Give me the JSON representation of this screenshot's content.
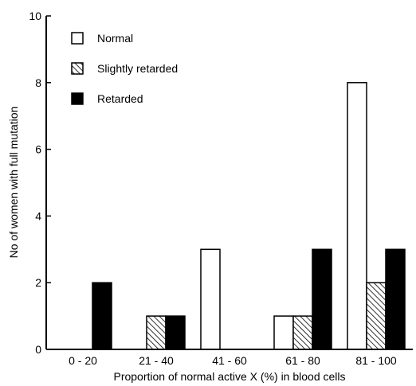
{
  "chart_data": {
    "type": "bar",
    "title": "",
    "xlabel": "Proportion of normal active X (%) in blood cells",
    "ylabel": "No of women with full mutation",
    "ylim": [
      0,
      10
    ],
    "yticks": [
      "0",
      "2",
      "4",
      "6",
      "8",
      "10"
    ],
    "categories": [
      "0 - 20",
      "21 - 40",
      "41 - 60",
      "61 - 80",
      "81 - 100"
    ],
    "legend_placement": "top-left",
    "grid": false,
    "series": [
      {
        "name": "Normal",
        "values": [
          0,
          0,
          3,
          1,
          8
        ],
        "fill": "#ffffff",
        "pattern": "none"
      },
      {
        "name": "Slightly retarded",
        "values": [
          0,
          1,
          0,
          1,
          2
        ],
        "fill": "#ffffff",
        "pattern": "hatch"
      },
      {
        "name": "Retarded",
        "values": [
          2,
          1,
          0,
          3,
          3
        ],
        "fill": "#000000",
        "pattern": "none"
      }
    ]
  }
}
